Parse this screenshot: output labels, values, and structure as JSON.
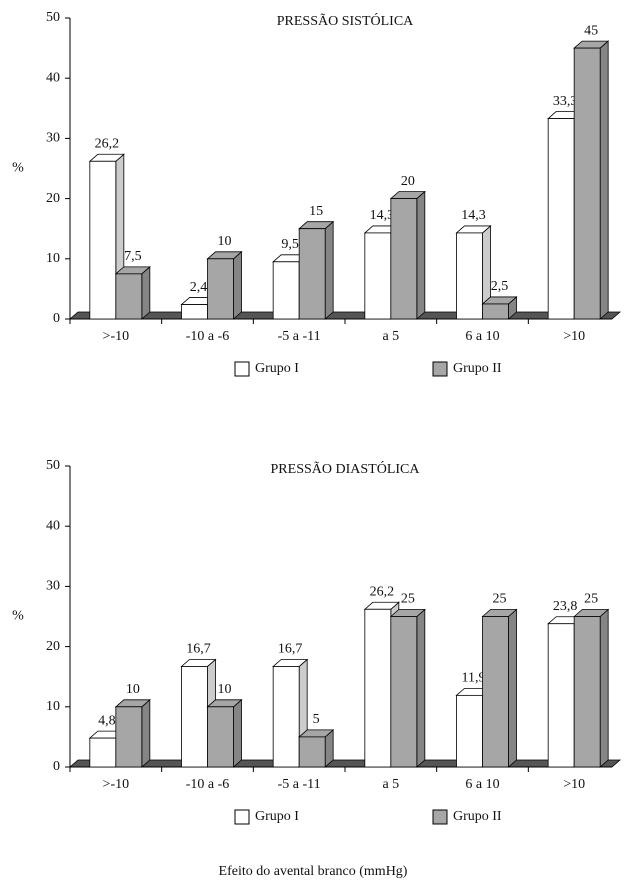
{
  "chart_data": [
    {
      "type": "bar3d",
      "title": "PRESSÃO SISTÓLICA",
      "ylabel": "%",
      "categories": [
        ">-10",
        "-10 a -6",
        "-5 a -11",
        "a 5",
        "6 a 10",
        ">10"
      ],
      "series": [
        {
          "name": "Grupo I",
          "color": "#ffffff",
          "values": [
            26.2,
            2.4,
            9.5,
            14.3,
            14.3,
            33.3
          ],
          "value_labels": [
            "26,2",
            "2,4",
            "9,5",
            "14,3",
            "14,3",
            "33,3"
          ]
        },
        {
          "name": "Grupo II",
          "color": "#a6a6a6",
          "values": [
            7.5,
            10,
            15,
            20,
            2.5,
            45
          ],
          "value_labels": [
            "7,5",
            "10",
            "15",
            "20",
            "2,5",
            "45"
          ]
        }
      ],
      "ylim": [
        0,
        50
      ],
      "yticks": [
        0,
        10,
        20,
        30,
        40,
        50
      ]
    },
    {
      "type": "bar3d",
      "title": "PRESSÃO DIASTÓLICA",
      "ylabel": "%",
      "categories": [
        ">-10",
        "-10 a -6",
        "-5 a -11",
        "a 5",
        "6 a 10",
        ">10"
      ],
      "series": [
        {
          "name": "Grupo I",
          "color": "#ffffff",
          "values": [
            4.8,
            16.7,
            16.7,
            26.2,
            11.9,
            23.8
          ],
          "value_labels": [
            "4,8",
            "16,7",
            "16,7",
            "26,2",
            "11,9",
            "23,8"
          ]
        },
        {
          "name": "Grupo II",
          "color": "#a6a6a6",
          "values": [
            10,
            10,
            5,
            25,
            25,
            25
          ],
          "value_labels": [
            "10",
            "10",
            "5",
            "25",
            "25",
            "25"
          ]
        }
      ],
      "ylim": [
        0,
        50
      ],
      "yticks": [
        0,
        10,
        20,
        30,
        40,
        50
      ]
    }
  ],
  "caption": "Efeito do avental branco (mmHg)"
}
